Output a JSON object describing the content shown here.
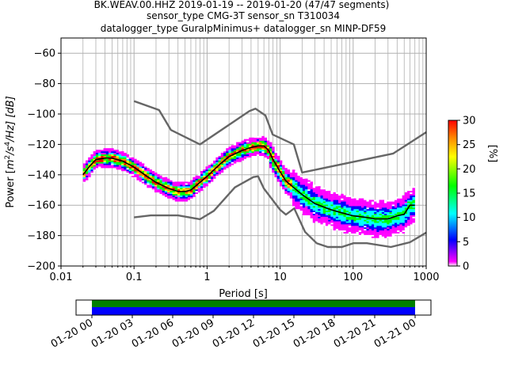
{
  "title_lines": [
    "BK.WEAV.00.HHZ   2019-01-19 -- 2019-01-20  (47/47 segments)",
    "sensor_type CMG-3T sensor_sn T310034",
    "datalogger_type GuralpMinimus+ datalogger_sn MINP-DF59"
  ],
  "chart_data": [
    {
      "type": "heatmap",
      "title": "BK.WEAV.00.HHZ   2019-01-19 -- 2019-01-20  (47/47 segments)",
      "xlabel": "Period [s]",
      "ylabel": "Power [m²/s⁴/Hz] [dB]",
      "ylabel_parts": {
        "pre": "Power [",
        "m": "m",
        "e2": "2",
        "s": "/s",
        "e4": "4",
        "hz": "/Hz] [dB]"
      },
      "xscale": "log",
      "xlim": [
        0.01,
        1000
      ],
      "ylim": [
        -200,
        -50
      ],
      "x_ticks": [
        0.01,
        0.1,
        1,
        10,
        100,
        1000
      ],
      "x_tick_labels": [
        "0.01",
        "0.1",
        "1",
        "10",
        "100",
        "1000"
      ],
      "y_ticks": [
        -200,
        -180,
        -160,
        -140,
        -120,
        -100,
        -80,
        -60
      ],
      "y_tick_labels": [
        "−200",
        "−180",
        "−160",
        "−140",
        "−120",
        "−100",
        "−80",
        "−60"
      ],
      "grid": true,
      "colorbar": {
        "label": "[%]",
        "range": [
          0,
          30
        ],
        "ticks": [
          0,
          5,
          10,
          15,
          20,
          25,
          30
        ],
        "tick_labels": [
          "0",
          "5",
          "10",
          "15",
          "20",
          "25",
          "30"
        ],
        "colors": [
          "#ffffff",
          "#ff00ff",
          "#0000ff",
          "#00ffff",
          "#00ff00",
          "#ffff00",
          "#ff8800",
          "#ff0000"
        ]
      },
      "series": [
        {
          "role": "mean",
          "color": "#000000",
          "points": [
            [
              0.02,
              -140
            ],
            [
              0.025,
              -134
            ],
            [
              0.03,
              -130
            ],
            [
              0.04,
              -129
            ],
            [
              0.05,
              -129
            ],
            [
              0.07,
              -131
            ],
            [
              0.1,
              -135
            ],
            [
              0.15,
              -141
            ],
            [
              0.2,
              -145
            ],
            [
              0.3,
              -149
            ],
            [
              0.4,
              -151
            ],
            [
              0.5,
              -151
            ],
            [
              0.6,
              -150
            ],
            [
              0.8,
              -145
            ],
            [
              1,
              -141
            ],
            [
              1.5,
              -133
            ],
            [
              2,
              -128
            ],
            [
              3,
              -124
            ],
            [
              4,
              -122
            ],
            [
              5,
              -121
            ],
            [
              6,
              -121
            ],
            [
              7,
              -124
            ],
            [
              8,
              -130
            ],
            [
              10,
              -138
            ],
            [
              12,
              -144
            ],
            [
              15,
              -148
            ],
            [
              20,
              -153
            ],
            [
              30,
              -159
            ],
            [
              50,
              -163
            ],
            [
              70,
              -165
            ],
            [
              100,
              -167
            ],
            [
              150,
              -168
            ],
            [
              200,
              -169
            ],
            [
              300,
              -169
            ],
            [
              400,
              -167
            ],
            [
              500,
              -166
            ],
            [
              600,
              -160
            ],
            [
              700,
              -160
            ]
          ]
        },
        {
          "role": "noise-model-high",
          "color": "#666666",
          "points": [
            [
              0.1,
              -91.5
            ],
            [
              0.22,
              -97.4
            ],
            [
              0.32,
              -110.5
            ],
            [
              0.8,
              -120
            ],
            [
              3.8,
              -98
            ],
            [
              4.6,
              -96.5
            ],
            [
              6.3,
              -101
            ],
            [
              7.9,
              -113.5
            ],
            [
              15.4,
              -120
            ],
            [
              20,
              -138.5
            ],
            [
              354,
              -126
            ],
            [
              1000,
              -112
            ]
          ]
        },
        {
          "role": "noise-model-low",
          "color": "#666666",
          "points": [
            [
              0.1,
              -168
            ],
            [
              0.17,
              -166.7
            ],
            [
              0.4,
              -166.7
            ],
            [
              0.8,
              -169.2
            ],
            [
              1.24,
              -163.7
            ],
            [
              2.4,
              -148.3
            ],
            [
              4.3,
              -141.5
            ],
            [
              5,
              -141
            ],
            [
              6,
              -149
            ],
            [
              10,
              -163
            ],
            [
              12,
              -166.2
            ],
            [
              15.6,
              -162.1
            ],
            [
              21.9,
              -177.5
            ],
            [
              31.6,
              -185
            ],
            [
              45,
              -187.5
            ],
            [
              70,
              -187.5
            ],
            [
              101,
              -185
            ],
            [
              154,
              -185
            ],
            [
              328,
              -187.5
            ],
            [
              600,
              -184.4
            ],
            [
              1000,
              -178
            ]
          ]
        }
      ]
    },
    {
      "type": "area",
      "title": "",
      "x_tick_labels": [
        "01-20 00",
        "01-20 03",
        "01-20 06",
        "01-20 09",
        "01-20 12",
        "01-20 15",
        "01-20 18",
        "01-20 21",
        "01-21 00"
      ],
      "bands": [
        {
          "color": "#008000"
        },
        {
          "color": "#0000ff"
        }
      ]
    }
  ]
}
